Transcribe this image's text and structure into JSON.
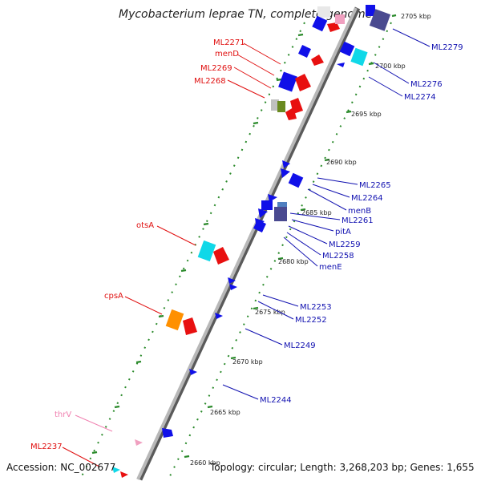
{
  "title": "Mycobacterium leprae TN, complete genome",
  "footer": {
    "accession": "Accession: NC_002677",
    "stats": "Topology: circular; Length: 3,268,203 bp; Genes: 1,655"
  },
  "colors": {
    "backbone": "#8c8c8c",
    "forward_label": "#e01010",
    "reverse_label": "#1010b0",
    "trna_label": "#f080b0",
    "tick": "#2a8a2a",
    "blue": "#1010e8",
    "red": "#e81010",
    "cyan": "#10d8e8",
    "slate": "#4a4a90",
    "orange": "#ff9000",
    "olive": "#6a8a20",
    "pink": "#f0a0c0",
    "gray": "#c0c0c0"
  },
  "positions": [
    "2705 kbp",
    "2700 kbp",
    "2695 kbp",
    "2690 kbp",
    "2685 kbp",
    "2680 kbp",
    "2675 kbp",
    "2670 kbp",
    "2665 kbp",
    "2660 kbp"
  ],
  "left_labels": [
    "ML2271",
    "menD",
    "ML2269",
    "ML2268",
    "otsA",
    "cpsA",
    "thrV",
    "ML2237"
  ],
  "right_labels": [
    "ML2279",
    "ML2276",
    "ML2274",
    "ML2265",
    "ML2264",
    "menB",
    "ML2261",
    "pitA",
    "ML2259",
    "ML2258",
    "menE",
    "ML2253",
    "ML2252",
    "ML2249",
    "ML2244"
  ]
}
